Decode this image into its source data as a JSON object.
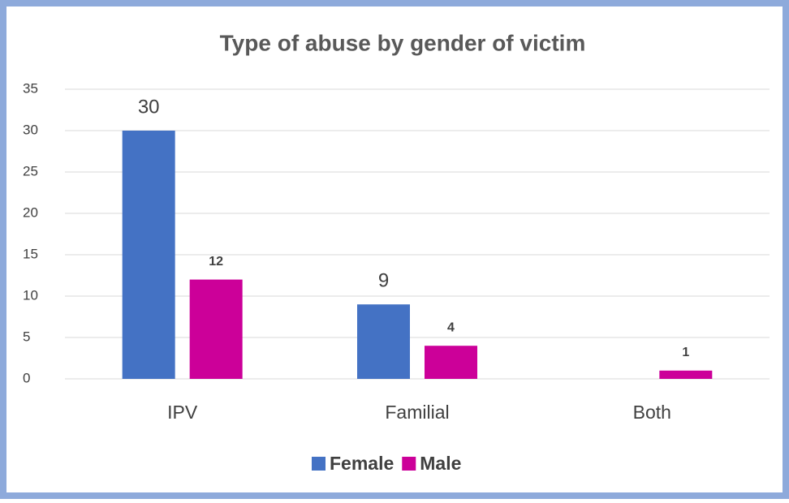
{
  "chart_data": {
    "type": "bar",
    "title": "Type of abuse by gender of victim",
    "categories": [
      "IPV",
      "Familial",
      "Both"
    ],
    "series": [
      {
        "name": "Female",
        "color": "#4472c4",
        "values": [
          30,
          9,
          null
        ]
      },
      {
        "name": "Male",
        "color": "#cc0099",
        "values": [
          12,
          4,
          1
        ]
      }
    ],
    "ylim": [
      0,
      35
    ],
    "yticks": [
      0,
      5,
      10,
      15,
      20,
      25,
      30,
      35
    ],
    "grid": true,
    "legend": "bottom"
  }
}
